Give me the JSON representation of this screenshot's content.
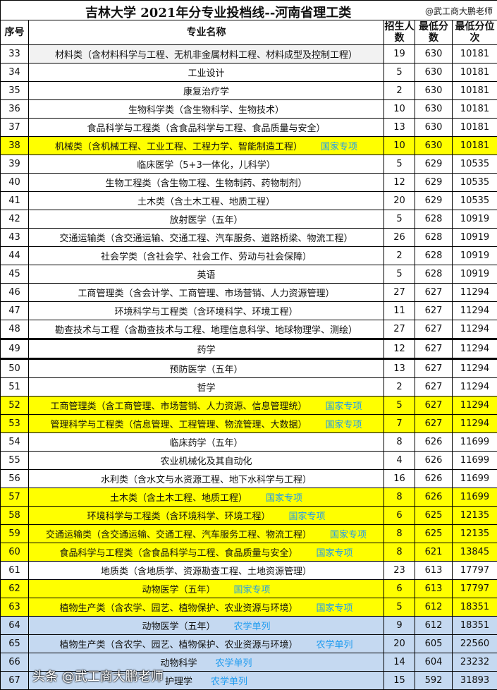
{
  "title": "吉林大学  2021年分专业投档线--河南省理工类",
  "credit": "@武工商大鹏老师",
  "headers": {
    "seq": "序号",
    "name": "专业名称",
    "count": "招生人数",
    "score": "最低分数",
    "rank": "最低分位次"
  },
  "colors": {
    "highlight_yellow": "#ffff00",
    "highlight_blue": "#c5d9f1",
    "tag": "#1e9bf0"
  },
  "rows": [
    {
      "seq": "33",
      "name": "材料类（含材料科学与工程、无机非金属材料工程、材料成型及控制工程）",
      "tag": "",
      "count": "19",
      "score": "630",
      "rank": "10181",
      "style": ""
    },
    {
      "seq": "34",
      "name": "工业设计",
      "tag": "",
      "count": "5",
      "score": "630",
      "rank": "10181",
      "style": ""
    },
    {
      "seq": "35",
      "name": "康复治疗学",
      "tag": "",
      "count": "2",
      "score": "630",
      "rank": "10181",
      "style": ""
    },
    {
      "seq": "36",
      "name": "生物科学类（含生物科学、生物技术）",
      "tag": "",
      "count": "10",
      "score": "630",
      "rank": "10181",
      "style": ""
    },
    {
      "seq": "37",
      "name": "食品科学与工程类（含食品科学与工程、食品质量与安全）",
      "tag": "",
      "count": "13",
      "score": "630",
      "rank": "10181",
      "style": ""
    },
    {
      "seq": "38",
      "name": "机械类（含机械工程、工业工程、工程力学、智能制造工程）",
      "tag": "国家专项",
      "count": "10",
      "score": "630",
      "rank": "10181",
      "style": "yellow"
    },
    {
      "seq": "39",
      "name": "临床医学（5+3一体化，儿科学）",
      "tag": "",
      "count": "5",
      "score": "629",
      "rank": "10535",
      "style": ""
    },
    {
      "seq": "40",
      "name": "生物工程类（含生物工程、生物制药、药物制剂）",
      "tag": "",
      "count": "12",
      "score": "629",
      "rank": "10535",
      "style": ""
    },
    {
      "seq": "41",
      "name": "土木类（含土木工程、地质工程）",
      "tag": "",
      "count": "20",
      "score": "629",
      "rank": "10535",
      "style": ""
    },
    {
      "seq": "42",
      "name": "放射医学（五年）",
      "tag": "",
      "count": "5",
      "score": "628",
      "rank": "10919",
      "style": ""
    },
    {
      "seq": "43",
      "name": "交通运输类（含交通运输、交通工程、汽车服务、道路桥梁、物流工程）",
      "tag": "",
      "count": "26",
      "score": "628",
      "rank": "10919",
      "style": ""
    },
    {
      "seq": "44",
      "name": "社会学类（含社会学、社会工作、劳动与社会保障）",
      "tag": "",
      "count": "2",
      "score": "628",
      "rank": "10919",
      "style": ""
    },
    {
      "seq": "45",
      "name": "英语",
      "tag": "",
      "count": "5",
      "score": "628",
      "rank": "10919",
      "style": ""
    },
    {
      "seq": "46",
      "name": "工商管理类（含会计学、工商管理、市场营销、人力资源管理）",
      "tag": "",
      "count": "27",
      "score": "627",
      "rank": "11294",
      "style": ""
    },
    {
      "seq": "47",
      "name": "环境科学与工程类（含环境科学、环境工程）",
      "tag": "",
      "count": "11",
      "score": "627",
      "rank": "11294",
      "style": ""
    },
    {
      "seq": "48",
      "name": "勘查技术与工程（含勘查技术与工程、地理信息科学、地球物理学、测绘）",
      "tag": "",
      "count": "27",
      "score": "627",
      "rank": "11294",
      "style": "thick"
    },
    {
      "seq": "49",
      "name": "药学",
      "tag": "",
      "count": "12",
      "score": "627",
      "rank": "11294",
      "style": "thick"
    },
    {
      "seq": "50",
      "name": "预防医学（五年）",
      "tag": "",
      "count": "13",
      "score": "627",
      "rank": "11294",
      "style": ""
    },
    {
      "seq": "51",
      "name": "哲学",
      "tag": "",
      "count": "2",
      "score": "627",
      "rank": "11294",
      "style": ""
    },
    {
      "seq": "52",
      "name": "工商管理类（含工商管理、市场营销、人力资源、信息管理统）",
      "tag": "国家专项",
      "count": "5",
      "score": "627",
      "rank": "11294",
      "style": "yellow"
    },
    {
      "seq": "53",
      "name": "管理科学与工程类（信息管理、工程管理、物流管理、大数据）",
      "tag": "国家专项",
      "count": "7",
      "score": "627",
      "rank": "11294",
      "style": "yellow"
    },
    {
      "seq": "54",
      "name": "临床药学（五年）",
      "tag": "",
      "count": "8",
      "score": "626",
      "rank": "11699",
      "style": ""
    },
    {
      "seq": "55",
      "name": "农业机械化及其自动化",
      "tag": "",
      "count": "4",
      "score": "626",
      "rank": "11699",
      "style": ""
    },
    {
      "seq": "56",
      "name": "水利类（含水文与水资源工程、地下水科学与工程）",
      "tag": "",
      "count": "16",
      "score": "626",
      "rank": "11699",
      "style": ""
    },
    {
      "seq": "57",
      "name": "土木类（含土木工程、地质工程）",
      "tag": "国家专项",
      "count": "8",
      "score": "626",
      "rank": "11699",
      "style": "yellow"
    },
    {
      "seq": "58",
      "name": "环境科学与工程类（含环境科学、环境工程）",
      "tag": "国家专项",
      "count": "6",
      "score": "625",
      "rank": "12135",
      "style": "yellow"
    },
    {
      "seq": "59",
      "name": "交通运输类（含交通运输、交通工程、汽车服务工程、物流工程）",
      "tag": "国家专项",
      "count": "8",
      "score": "625",
      "rank": "12135",
      "style": "yellow"
    },
    {
      "seq": "60",
      "name": "食品科学与工程类（含食品科学与工程、食品质量与安全）",
      "tag": "国家专项",
      "count": "8",
      "score": "621",
      "rank": "13845",
      "style": "yellow"
    },
    {
      "seq": "61",
      "name": "地质类（含地质学、资源勘查工程、土地资源管理）",
      "tag": "",
      "count": "23",
      "score": "613",
      "rank": "17797",
      "style": ""
    },
    {
      "seq": "62",
      "name": "动物医学（五年）",
      "tag": "国家专项",
      "count": "6",
      "score": "613",
      "rank": "17797",
      "style": "yellow"
    },
    {
      "seq": "63",
      "name": "植物生产类（含农学、园艺、植物保护、农业资源与环境）",
      "tag": "国家专项",
      "count": "5",
      "score": "612",
      "rank": "18351",
      "style": "yellow"
    },
    {
      "seq": "64",
      "name": "动物医学（五年）",
      "tag": "农学单列",
      "count": "9",
      "score": "612",
      "rank": "18351",
      "style": "blue"
    },
    {
      "seq": "65",
      "name": "植物生产类（含农学、园艺、植物保护、农业资源与环境）",
      "tag": "农学单列",
      "count": "20",
      "score": "605",
      "rank": "22560",
      "style": "blue"
    },
    {
      "seq": "66",
      "name": "动物科学",
      "tag": "农学单列",
      "count": "14",
      "score": "604",
      "rank": "23232",
      "style": "blue"
    },
    {
      "seq": "67",
      "name": "护理学",
      "tag": "农学单列",
      "count": "15",
      "score": "592",
      "rank": "31893",
      "style": "blue"
    }
  ],
  "overlay_watermark": "头条 @武工商大鹏老师"
}
